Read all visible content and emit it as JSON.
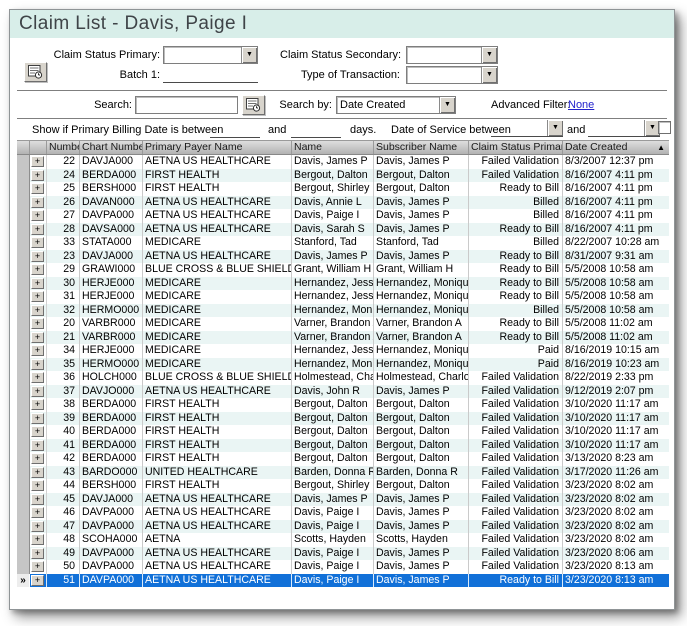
{
  "window": {
    "title": "Claim List - Davis, Paige I"
  },
  "filters": {
    "claim_status_primary_label": "Claim Status Primary:",
    "claim_status_primary_value": "",
    "claim_status_secondary_label": "Claim Status Secondary:",
    "claim_status_secondary_value": "",
    "batch1_label": "Batch 1:",
    "batch1_value": "",
    "type_of_transaction_label": "Type of Transaction:",
    "type_of_transaction_value": "",
    "search_label": "Search:",
    "search_value": "",
    "search_by_label": "Search by:",
    "search_by_value": "Date Created",
    "advanced_filter_label": "Advanced Filter:",
    "advanced_filter_value": "None",
    "show_if_label": "Show if Primary Billing Date is between",
    "and_label": "and",
    "days_label": "days.",
    "billing_between_value": "",
    "billing_and_value": "",
    "date_of_service_label": "Date of Service between",
    "service_from_value": "",
    "service_to_value": ""
  },
  "icons": {
    "dropdown_arrow": "▼",
    "sort_ascending": "▲",
    "row_marker_glyph": "»",
    "expand_glyph": "+",
    "batch_lookup_icon": "list-with-clock",
    "search_lookup_icon": "list-with-clock"
  },
  "table": {
    "columns": [
      "Number",
      "Chart Number",
      "Primary Payer Name",
      "Name",
      "Subscriber Name",
      "Claim Status Primary",
      "Date Created"
    ],
    "sort_column": "Date Created",
    "sort_direction": "ascending",
    "rows": [
      {
        "number": "22",
        "chart": "DAVJA000",
        "payer": "AETNA US HEALTHCARE",
        "name": "Davis, James P",
        "subscriber": "Davis, James P",
        "status": "Failed Validation",
        "created": "8/3/2007 12:37 pm"
      },
      {
        "number": "24",
        "chart": "BERDA000",
        "payer": "FIRST HEALTH",
        "name": "Bergout, Dalton",
        "subscriber": "Bergout, Dalton",
        "status": "Failed Validation",
        "created": "8/16/2007 4:11 pm"
      },
      {
        "number": "25",
        "chart": "BERSH000",
        "payer": "FIRST HEALTH",
        "name": "Bergout, Shirley",
        "subscriber": "Bergout, Dalton",
        "status": "Ready to Bill",
        "created": "8/16/2007 4:11 pm"
      },
      {
        "number": "26",
        "chart": "DAVAN000",
        "payer": "AETNA US HEALTHCARE",
        "name": "Davis, Annie L",
        "subscriber": "Davis, James P",
        "status": "Billed",
        "created": "8/16/2007 4:11 pm"
      },
      {
        "number": "27",
        "chart": "DAVPA000",
        "payer": "AETNA US HEALTHCARE",
        "name": "Davis, Paige I",
        "subscriber": "Davis, James P",
        "status": "Billed",
        "created": "8/16/2007 4:11 pm"
      },
      {
        "number": "28",
        "chart": "DAVSA000",
        "payer": "AETNA US HEALTHCARE",
        "name": "Davis, Sarah S",
        "subscriber": "Davis, James P",
        "status": "Ready to Bill",
        "created": "8/16/2007 4:11 pm"
      },
      {
        "number": "33",
        "chart": "STATA000",
        "payer": "MEDICARE",
        "name": "Stanford, Tad",
        "subscriber": "Stanford, Tad",
        "status": "Billed",
        "created": "8/22/2007 10:28 am"
      },
      {
        "number": "23",
        "chart": "DAVJA000",
        "payer": "AETNA US HEALTHCARE",
        "name": "Davis, James P",
        "subscriber": "Davis, James P",
        "status": "Ready to Bill",
        "created": "8/31/2007 9:31 am"
      },
      {
        "number": "29",
        "chart": "GRAWI000",
        "payer": "BLUE CROSS & BLUE SHIELD",
        "name": "Grant, William H",
        "subscriber": "Grant, William H",
        "status": "Ready to Bill",
        "created": "5/5/2008 10:58 am"
      },
      {
        "number": "30",
        "chart": "HERJE000",
        "payer": "MEDICARE",
        "name": "Hernandez, Jesse J",
        "subscriber": "Hernandez, Monique C",
        "status": "Ready to Bill",
        "created": "5/5/2008 10:58 am"
      },
      {
        "number": "31",
        "chart": "HERJE000",
        "payer": "MEDICARE",
        "name": "Hernandez, Jesse J",
        "subscriber": "Hernandez, Monique C",
        "status": "Ready to Bill",
        "created": "5/5/2008 10:58 am"
      },
      {
        "number": "32",
        "chart": "HERMO000",
        "payer": "MEDICARE",
        "name": "Hernandez, Monique",
        "subscriber": "Hernandez, Monique C",
        "status": "Billed",
        "created": "5/5/2008 10:58 am"
      },
      {
        "number": "20",
        "chart": "VARBR000",
        "payer": "MEDICARE",
        "name": "Varner, Brandon A",
        "subscriber": "Varner, Brandon A",
        "status": "Ready to Bill",
        "created": "5/5/2008 11:02 am"
      },
      {
        "number": "21",
        "chart": "VARBR000",
        "payer": "MEDICARE",
        "name": "Varner, Brandon A",
        "subscriber": "Varner, Brandon A",
        "status": "Ready to Bill",
        "created": "5/5/2008 11:02 am"
      },
      {
        "number": "34",
        "chart": "HERJE000",
        "payer": "MEDICARE",
        "name": "Hernandez, Jesse J",
        "subscriber": "Hernandez, Monique C",
        "status": "Paid",
        "created": "8/16/2019 10:15 am"
      },
      {
        "number": "35",
        "chart": "HERMO000",
        "payer": "MEDICARE",
        "name": "Hernandez, Monique",
        "subscriber": "Hernandez, Monique C",
        "status": "Paid",
        "created": "8/16/2019 10:23 am"
      },
      {
        "number": "36",
        "chart": "HOLCH000",
        "payer": "BLUE CROSS & BLUE SHIELD",
        "name": "Holmestead, Charlott",
        "subscriber": "Holmestead, Charlotta",
        "status": "Failed Validation",
        "created": "8/22/2019 2:33 pm"
      },
      {
        "number": "37",
        "chart": "DAVJO000",
        "payer": "AETNA US HEALTHCARE",
        "name": "Davis, John R",
        "subscriber": "Davis, James P",
        "status": "Failed Validation",
        "created": "9/12/2019 2:07 pm"
      },
      {
        "number": "38",
        "chart": "BERDA000",
        "payer": "FIRST HEALTH",
        "name": "Bergout, Dalton",
        "subscriber": "Bergout, Dalton",
        "status": "Failed Validation",
        "created": "3/10/2020 11:17 am"
      },
      {
        "number": "39",
        "chart": "BERDA000",
        "payer": "FIRST HEALTH",
        "name": "Bergout, Dalton",
        "subscriber": "Bergout, Dalton",
        "status": "Failed Validation",
        "created": "3/10/2020 11:17 am"
      },
      {
        "number": "40",
        "chart": "BERDA000",
        "payer": "FIRST HEALTH",
        "name": "Bergout, Dalton",
        "subscriber": "Bergout, Dalton",
        "status": "Failed Validation",
        "created": "3/10/2020 11:17 am"
      },
      {
        "number": "41",
        "chart": "BERDA000",
        "payer": "FIRST HEALTH",
        "name": "Bergout, Dalton",
        "subscriber": "Bergout, Dalton",
        "status": "Failed Validation",
        "created": "3/10/2020 11:17 am"
      },
      {
        "number": "42",
        "chart": "BERDA000",
        "payer": "FIRST HEALTH",
        "name": "Bergout, Dalton",
        "subscriber": "Bergout, Dalton",
        "status": "Failed Validation",
        "created": "3/13/2020 8:23 am"
      },
      {
        "number": "43",
        "chart": "BARDO000",
        "payer": "UNITED HEALTHCARE",
        "name": "Barden, Donna R",
        "subscriber": "Barden, Donna R",
        "status": "Failed Validation",
        "created": "3/17/2020 11:26 am"
      },
      {
        "number": "44",
        "chart": "BERSH000",
        "payer": "FIRST HEALTH",
        "name": "Bergout, Shirley",
        "subscriber": "Bergout, Dalton",
        "status": "Failed Validation",
        "created": "3/23/2020 8:02 am"
      },
      {
        "number": "45",
        "chart": "DAVJA000",
        "payer": "AETNA US HEALTHCARE",
        "name": "Davis, James P",
        "subscriber": "Davis, James P",
        "status": "Failed Validation",
        "created": "3/23/2020 8:02 am"
      },
      {
        "number": "46",
        "chart": "DAVPA000",
        "payer": "AETNA US HEALTHCARE",
        "name": "Davis, Paige I",
        "subscriber": "Davis, James P",
        "status": "Failed Validation",
        "created": "3/23/2020 8:02 am"
      },
      {
        "number": "47",
        "chart": "DAVPA000",
        "payer": "AETNA US HEALTHCARE",
        "name": "Davis, Paige I",
        "subscriber": "Davis, James P",
        "status": "Failed Validation",
        "created": "3/23/2020 8:02 am"
      },
      {
        "number": "48",
        "chart": "SCOHA000",
        "payer": "AETNA",
        "name": "Scotts, Hayden",
        "subscriber": "Scotts, Hayden",
        "status": "Failed Validation",
        "created": "3/23/2020 8:02 am"
      },
      {
        "number": "49",
        "chart": "DAVPA000",
        "payer": "AETNA US HEALTHCARE",
        "name": "Davis, Paige I",
        "subscriber": "Davis, James P",
        "status": "Failed Validation",
        "created": "3/23/2020 8:06 am"
      },
      {
        "number": "50",
        "chart": "DAVPA000",
        "payer": "AETNA US HEALTHCARE",
        "name": "Davis, Paige I",
        "subscriber": "Davis, James P",
        "status": "Failed Validation",
        "created": "3/23/2020 8:13 am"
      },
      {
        "number": "51",
        "chart": "DAVPA000",
        "payer": "AETNA US HEALTHCARE",
        "name": "Davis, Paige I",
        "subscriber": "Davis, James P",
        "status": "Ready to Bill",
        "created": "3/23/2020 8:13 am",
        "selected": true
      }
    ]
  },
  "colors": {
    "title_bg": "#D8EEE9",
    "selection_bg": "#1170D8",
    "alt_row_bg": "#EAF5F4",
    "header_bg": "#C0C0C0",
    "link_blue": "#2222CC"
  }
}
